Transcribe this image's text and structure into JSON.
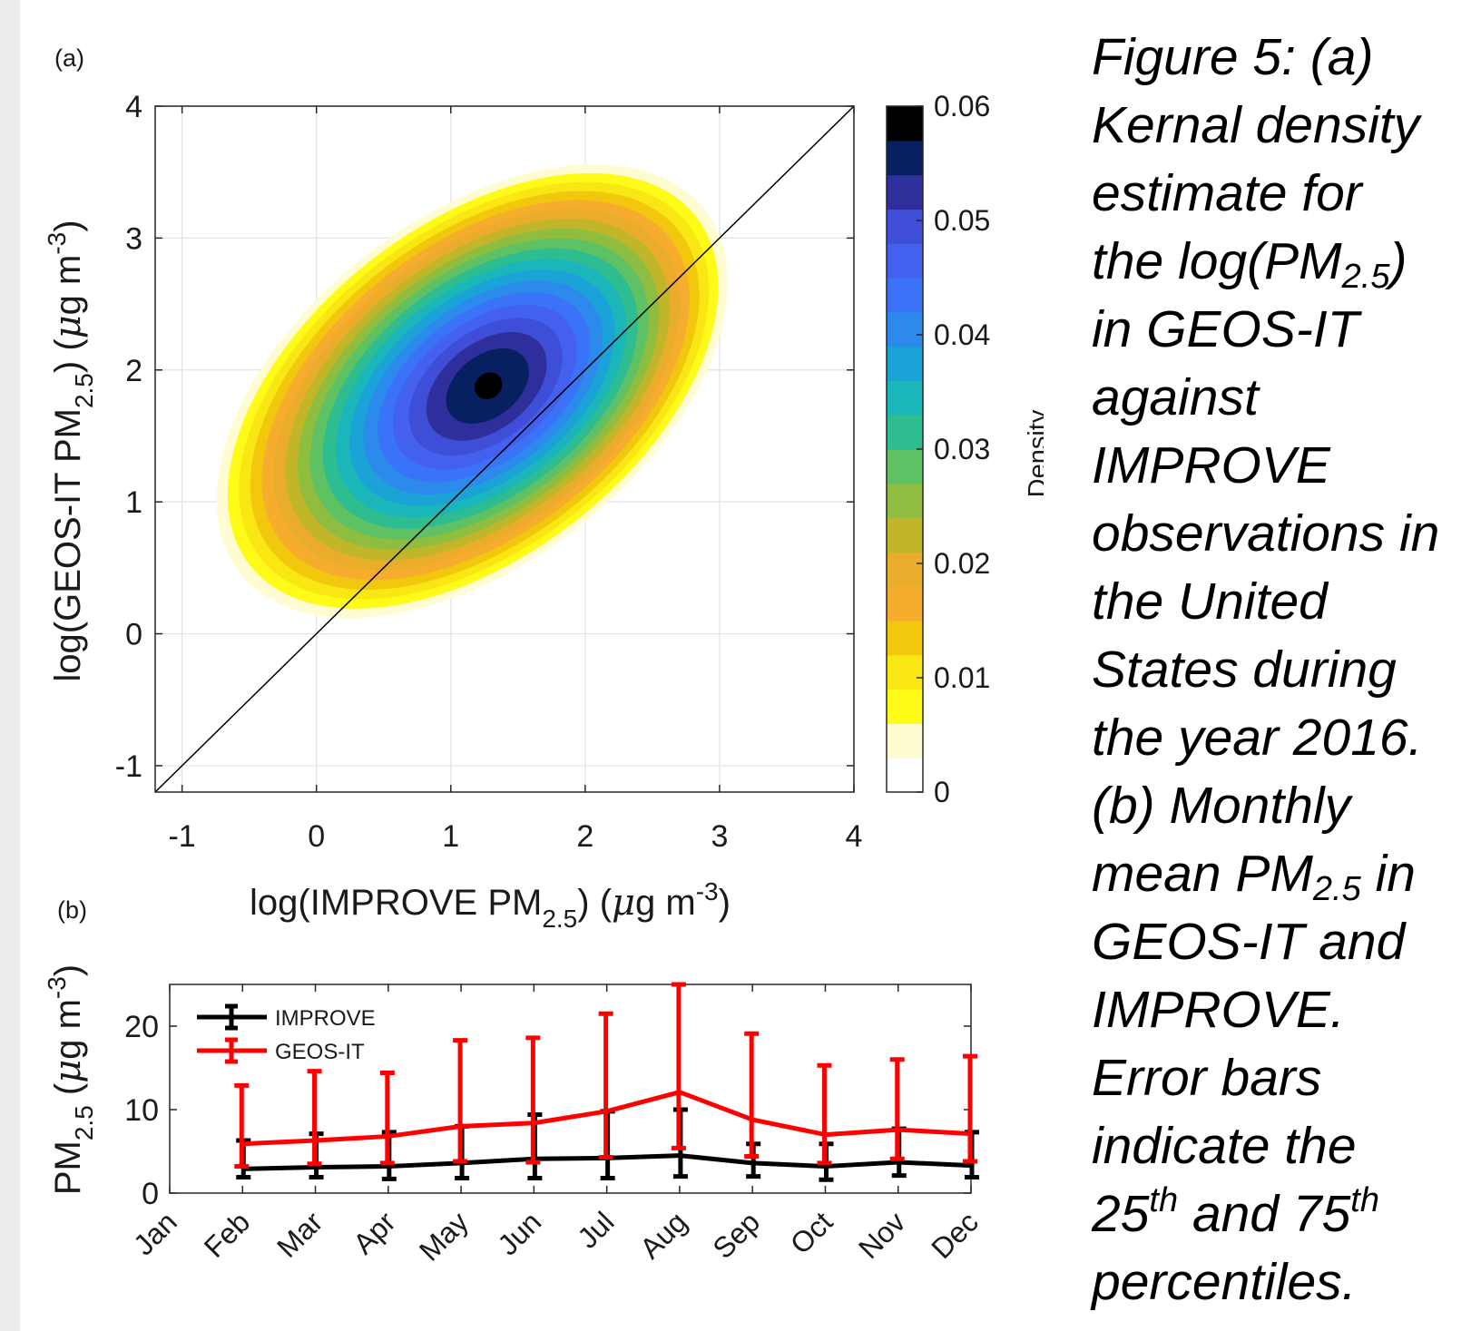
{
  "panel_a": {
    "label": "(a)"
  },
  "panel_b": {
    "label": "(b)"
  },
  "colors": {
    "improve": "#000000",
    "geos_it": "#ff0000",
    "colormap": [
      "#ffffff",
      "#fffcd2",
      "#fffa18",
      "#f9e714",
      "#f2c80f",
      "#f6ad2e",
      "#e9ac2b",
      "#c1b52a",
      "#8fbd3f",
      "#5ec164",
      "#2ebc91",
      "#1bb6b9",
      "#1ba2d6",
      "#2b8aeb",
      "#3a73f7",
      "#4360ef",
      "#3f4ed7",
      "#2e2f9c",
      "#062060",
      "#000000"
    ]
  },
  "chart_data": [
    {
      "type": "heatmap",
      "panel": "(a)",
      "description_of_density": "Kernel density estimate; peak near x=1.3, y=1.9",
      "xlabel": {
        "main": "log(IMPROVE PM",
        "sub": "2.5",
        "after": ") (",
        "mu": "μ",
        "unit": "g m",
        "sup": "-3",
        "close": ")"
      },
      "ylabel": {
        "main": "log(GEOS-IT PM",
        "sub": "2.5",
        "after": ") (",
        "mu": "μ",
        "unit": "g m",
        "sup": "-3",
        "close": ")"
      },
      "xlim": [
        -1.2,
        4
      ],
      "ylim": [
        -1.2,
        4
      ],
      "xticks": [
        "-1",
        "0",
        "1",
        "2",
        "3",
        "4"
      ],
      "yticks": [
        "-1",
        "0",
        "1",
        "2",
        "3",
        "4"
      ],
      "grid": true,
      "reference_line": "1:1",
      "density_peak": {
        "x": 1.28,
        "y": 1.88,
        "value": 0.06
      },
      "colorbar": {
        "label": "Density",
        "range": [
          0,
          0.06
        ],
        "ticks": [
          "0",
          "0.01",
          "0.02",
          "0.03",
          "0.04",
          "0.05",
          "0.06"
        ]
      }
    },
    {
      "type": "line",
      "panel": "(b)",
      "categories": [
        "Jan",
        "Feb",
        "Mar",
        "Apr",
        "May",
        "Jun",
        "Jul",
        "Aug",
        "Sep",
        "Oct",
        "Nov",
        "Dec"
      ],
      "x_positions": [
        1,
        2,
        3,
        4,
        5,
        6,
        7,
        8,
        9,
        10,
        11,
        12
      ],
      "ylabel": {
        "main": "PM",
        "sub": "2.5",
        "after": " (",
        "mu": "μ",
        "unit": "g m",
        "sup": "-3",
        "close": ")"
      },
      "ylim": [
        0,
        25
      ],
      "yticks": [
        "0",
        "10",
        "20"
      ],
      "grid": false,
      "legend_position": "top-left",
      "series": [
        {
          "name": "IMPROVE",
          "x": [
            2,
            3,
            4,
            5,
            6,
            7,
            8,
            9,
            10,
            11,
            12
          ],
          "mean": [
            2.9,
            3.1,
            3.2,
            3.6,
            4.1,
            4.2,
            4.5,
            3.6,
            3.2,
            3.7,
            3.3
          ],
          "p25": [
            1.9,
            1.9,
            1.7,
            1.8,
            1.8,
            1.8,
            2.0,
            2.0,
            1.6,
            2.1,
            1.9
          ],
          "p75": [
            6.3,
            7.1,
            7.3,
            8.0,
            9.4,
            9.8,
            10.0,
            5.9,
            5.9,
            7.7,
            7.3
          ]
        },
        {
          "name": "GEOS-IT",
          "x": [
            2,
            3,
            4,
            5,
            6,
            7,
            8,
            9,
            10,
            11,
            12
          ],
          "mean": [
            5.9,
            6.3,
            6.8,
            8.0,
            8.4,
            9.8,
            12.1,
            8.8,
            7.0,
            7.6,
            7.1
          ],
          "p25": [
            3.2,
            3.5,
            3.6,
            3.8,
            3.7,
            4.3,
            5.4,
            4.4,
            3.6,
            4.1,
            3.8
          ],
          "p75": [
            12.9,
            14.6,
            14.4,
            18.3,
            18.6,
            21.5,
            25.0,
            19.1,
            15.3,
            16.0,
            16.4
          ]
        }
      ]
    }
  ],
  "caption": {
    "lines": [
      {
        "text": "Figure 5: (a)"
      },
      {
        "text": "Kernal density"
      },
      {
        "text": "estimate for"
      },
      {
        "text": "the log(PM",
        "sub": "2.5",
        "after": ")"
      },
      {
        "text": "in GEOS-IT"
      },
      {
        "text": "against"
      },
      {
        "text": "IMPROVE"
      },
      {
        "text": "observations in"
      },
      {
        "text": "the United"
      },
      {
        "text": "States during"
      },
      {
        "text": "the year 2016."
      },
      {
        "text": "(b) Monthly"
      },
      {
        "text": "mean PM",
        "sub": "2.5",
        "after": " in"
      },
      {
        "text": "GEOS-IT and"
      },
      {
        "text": "IMPROVE."
      },
      {
        "text": "Error bars"
      },
      {
        "text": "indicate the"
      },
      {
        "text": "25",
        "sup": "th",
        "after": " and 75",
        "sup2": "th"
      },
      {
        "text": "percentiles."
      }
    ]
  }
}
